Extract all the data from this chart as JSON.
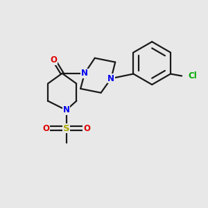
{
  "bg_color": "#e8e8e8",
  "bond_color": "#1a1a1a",
  "N_color": "#0000ee",
  "O_color": "#dd0000",
  "S_color": "#aaaa00",
  "Cl_color": "#00aa00",
  "lw": 1.6,
  "fs": 8.5,
  "xlim": [
    0,
    10
  ],
  "ylim": [
    0,
    10
  ]
}
